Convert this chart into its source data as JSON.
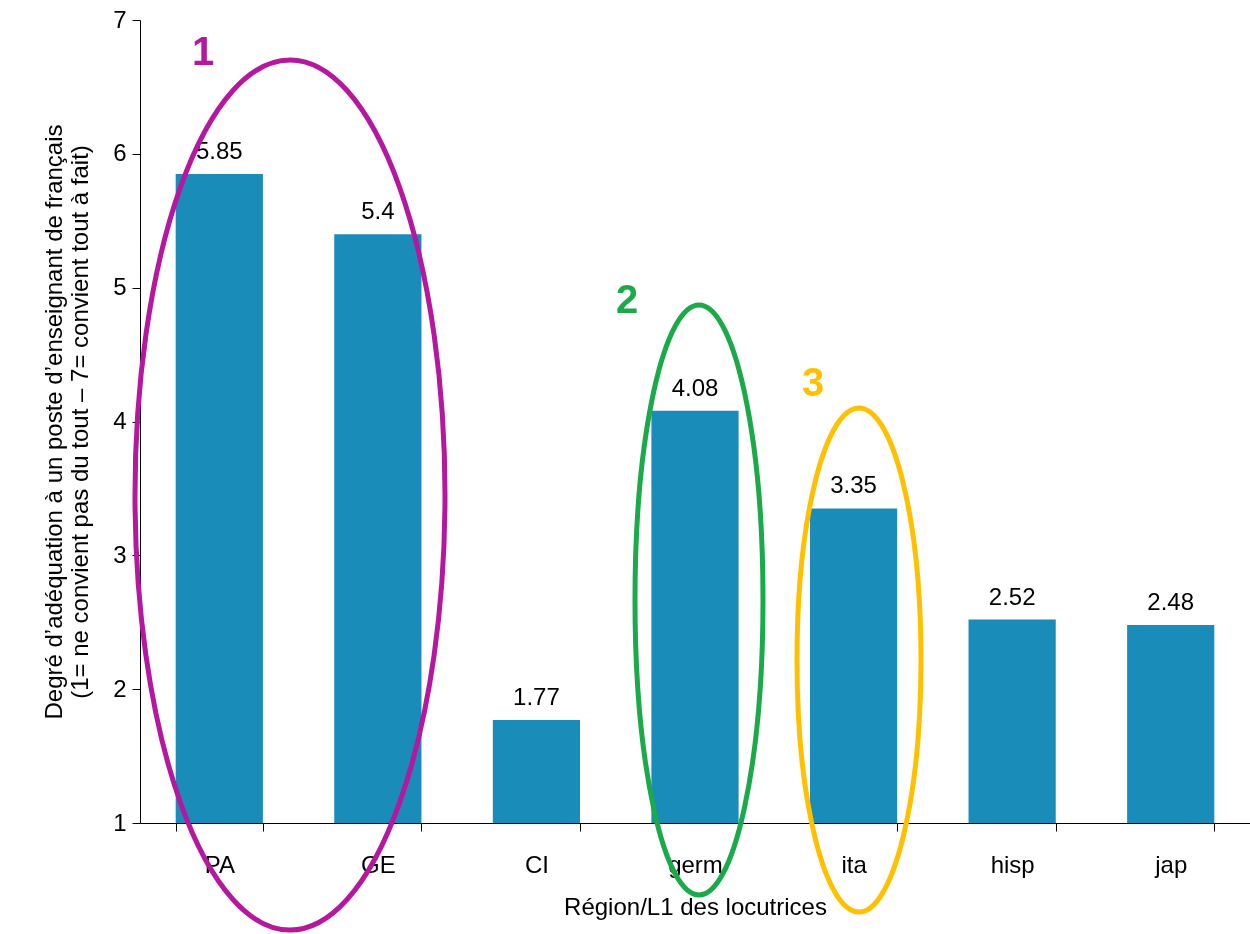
{
  "chart_data": {
    "type": "bar",
    "xlabel": "Région/L1 des locutrices",
    "ylabel": "Degré d’adéquation à un poste d’enseignant de français\n(1= ne convient pas du tout – 7= convient tout à fait)",
    "categories": [
      "PA",
      "GE",
      "CI",
      "germ",
      "ita",
      "hisp",
      "jap"
    ],
    "values": [
      5.85,
      5.4,
      1.77,
      4.08,
      3.35,
      2.52,
      2.48
    ],
    "color": "#1a8cba",
    "ylim": [
      1,
      7
    ],
    "yticks": [
      1,
      2,
      3,
      4,
      5,
      6,
      7
    ],
    "grid": false,
    "data_labels": true,
    "annotations": [
      "1",
      "2",
      "3"
    ]
  }
}
